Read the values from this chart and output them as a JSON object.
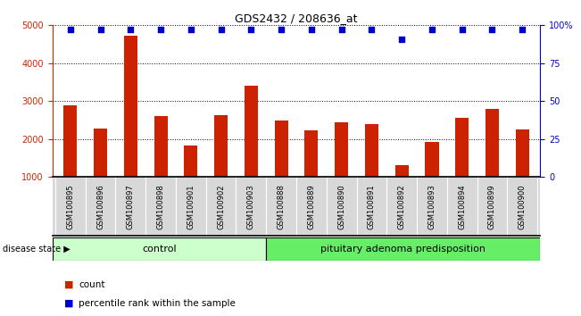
{
  "title": "GDS2432 / 208636_at",
  "samples": [
    "GSM100895",
    "GSM100896",
    "GSM100897",
    "GSM100898",
    "GSM100901",
    "GSM100902",
    "GSM100903",
    "GSM100888",
    "GSM100889",
    "GSM100890",
    "GSM100891",
    "GSM100892",
    "GSM100893",
    "GSM100894",
    "GSM100899",
    "GSM100900"
  ],
  "counts": [
    2880,
    2280,
    4720,
    2600,
    1840,
    2640,
    3400,
    2480,
    2240,
    2440,
    2400,
    1300,
    1920,
    2560,
    2800,
    2260
  ],
  "percentiles": [
    97,
    97,
    97,
    97,
    97,
    97,
    97,
    97,
    97,
    97,
    97,
    91,
    97,
    97,
    97,
    97
  ],
  "bar_color": "#cc2200",
  "percentile_color": "#0000cc",
  "control_count": 7,
  "disease_count": 9,
  "control_label": "control",
  "disease_label": "pituitary adenoma predisposition",
  "disease_state_label": "disease state",
  "legend_count_label": "count",
  "legend_pct_label": "percentile rank within the sample",
  "ylim_left": [
    1000,
    5000
  ],
  "ylim_right": [
    0,
    100
  ],
  "yticks_left": [
    1000,
    2000,
    3000,
    4000,
    5000
  ],
  "yticks_right": [
    0,
    25,
    50,
    75,
    100
  ],
  "bg_color": "#ffffff",
  "panel_bg": "#d8d8d8",
  "control_bg": "#ccffcc",
  "disease_bg": "#66ee66"
}
